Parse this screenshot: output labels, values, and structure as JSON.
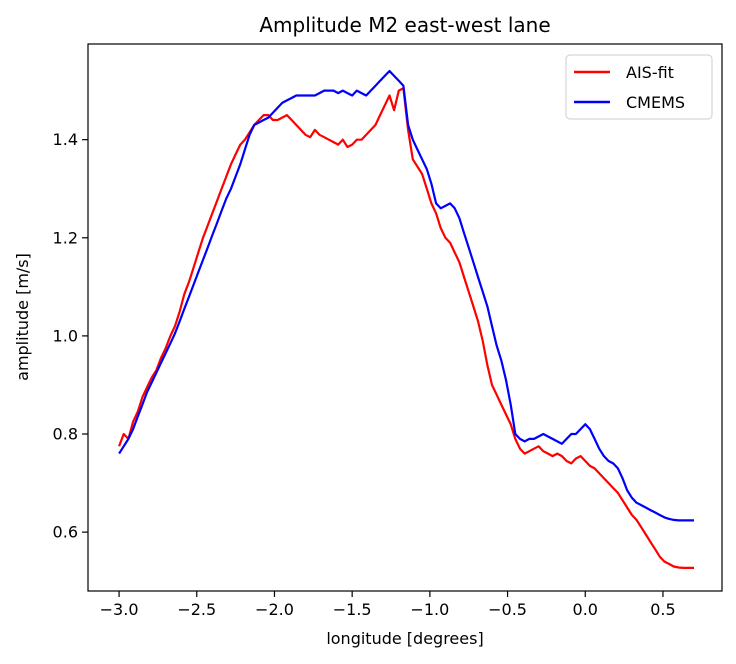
{
  "chart_data": {
    "type": "line",
    "title": "Amplitude M2 east-west lane",
    "xlabel": "longitude [degrees]",
    "ylabel": "amplitude [m/s]",
    "xlim": [
      -3.2,
      0.88
    ],
    "ylim": [
      0.48,
      1.595
    ],
    "xticks": [
      -3.0,
      -2.5,
      -2.0,
      -1.5,
      -1.0,
      -0.5,
      0.0,
      0.5
    ],
    "xtick_labels": [
      "−3.0",
      "−2.5",
      "−2.0",
      "−1.5",
      "−1.0",
      "−0.5",
      "0.0",
      "0.5"
    ],
    "yticks": [
      0.6,
      0.8,
      1.0,
      1.2,
      1.4
    ],
    "ytick_labels": [
      "0.6",
      "0.8",
      "1.0",
      "1.2",
      "1.4"
    ],
    "grid": false,
    "legend_position": "top-right",
    "series": [
      {
        "name": "AIS-fit",
        "color": "#ff0000",
        "x": [
          -3.0,
          -2.97,
          -2.94,
          -2.91,
          -2.88,
          -2.85,
          -2.82,
          -2.79,
          -2.76,
          -2.73,
          -2.7,
          -2.67,
          -2.64,
          -2.61,
          -2.58,
          -2.55,
          -2.52,
          -2.49,
          -2.46,
          -2.43,
          -2.4,
          -2.37,
          -2.34,
          -2.31,
          -2.28,
          -2.25,
          -2.22,
          -2.19,
          -2.16,
          -2.13,
          -2.1,
          -2.07,
          -2.04,
          -2.01,
          -1.98,
          -1.95,
          -1.92,
          -1.89,
          -1.86,
          -1.83,
          -1.8,
          -1.77,
          -1.74,
          -1.71,
          -1.68,
          -1.65,
          -1.62,
          -1.59,
          -1.56,
          -1.53,
          -1.5,
          -1.47,
          -1.44,
          -1.41,
          -1.38,
          -1.35,
          -1.32,
          -1.29,
          -1.26,
          -1.23,
          -1.2,
          -1.17,
          -1.14,
          -1.11,
          -1.08,
          -1.05,
          -1.02,
          -0.99,
          -0.96,
          -0.93,
          -0.9,
          -0.87,
          -0.84,
          -0.81,
          -0.78,
          -0.75,
          -0.72,
          -0.69,
          -0.66,
          -0.63,
          -0.6,
          -0.57,
          -0.54,
          -0.51,
          -0.48,
          -0.45,
          -0.42,
          -0.39,
          -0.36,
          -0.33,
          -0.3,
          -0.27,
          -0.24,
          -0.21,
          -0.18,
          -0.15,
          -0.12,
          -0.09,
          -0.06,
          -0.03,
          0.0,
          0.03,
          0.06,
          0.09,
          0.12,
          0.15,
          0.18,
          0.21,
          0.24,
          0.27,
          0.3,
          0.33,
          0.36,
          0.39,
          0.42,
          0.45,
          0.48,
          0.51,
          0.54,
          0.57,
          0.6,
          0.63,
          0.66,
          0.7
        ],
        "y": [
          0.775,
          0.8,
          0.79,
          0.825,
          0.845,
          0.875,
          0.895,
          0.915,
          0.93,
          0.955,
          0.975,
          1.0,
          1.02,
          1.05,
          1.085,
          1.11,
          1.14,
          1.17,
          1.2,
          1.225,
          1.25,
          1.275,
          1.3,
          1.325,
          1.35,
          1.37,
          1.39,
          1.4,
          1.415,
          1.43,
          1.44,
          1.45,
          1.45,
          1.44,
          1.44,
          1.445,
          1.45,
          1.44,
          1.43,
          1.42,
          1.41,
          1.405,
          1.42,
          1.41,
          1.405,
          1.4,
          1.395,
          1.39,
          1.4,
          1.385,
          1.39,
          1.4,
          1.4,
          1.41,
          1.42,
          1.43,
          1.45,
          1.47,
          1.49,
          1.46,
          1.5,
          1.505,
          1.42,
          1.36,
          1.345,
          1.33,
          1.3,
          1.27,
          1.25,
          1.22,
          1.2,
          1.19,
          1.17,
          1.15,
          1.12,
          1.09,
          1.06,
          1.03,
          0.99,
          0.94,
          0.9,
          0.88,
          0.86,
          0.84,
          0.82,
          0.79,
          0.77,
          0.76,
          0.765,
          0.77,
          0.775,
          0.765,
          0.76,
          0.755,
          0.76,
          0.755,
          0.745,
          0.74,
          0.75,
          0.755,
          0.745,
          0.735,
          0.73,
          0.72,
          0.71,
          0.7,
          0.69,
          0.68,
          0.665,
          0.65,
          0.635,
          0.625,
          0.61,
          0.595,
          0.58,
          0.565,
          0.55,
          0.54,
          0.535,
          0.53,
          0.528,
          0.527,
          0.527,
          0.527
        ]
      },
      {
        "name": "CMEMS",
        "color": "#0000ff",
        "x": [
          -3.0,
          -2.97,
          -2.94,
          -2.91,
          -2.88,
          -2.85,
          -2.82,
          -2.79,
          -2.76,
          -2.73,
          -2.7,
          -2.67,
          -2.64,
          -2.61,
          -2.58,
          -2.55,
          -2.52,
          -2.49,
          -2.46,
          -2.43,
          -2.4,
          -2.37,
          -2.34,
          -2.31,
          -2.28,
          -2.25,
          -2.22,
          -2.19,
          -2.16,
          -2.13,
          -2.1,
          -2.07,
          -2.04,
          -2.01,
          -1.98,
          -1.95,
          -1.92,
          -1.89,
          -1.86,
          -1.83,
          -1.8,
          -1.77,
          -1.74,
          -1.71,
          -1.68,
          -1.65,
          -1.62,
          -1.59,
          -1.56,
          -1.53,
          -1.5,
          -1.47,
          -1.44,
          -1.41,
          -1.38,
          -1.35,
          -1.32,
          -1.29,
          -1.26,
          -1.23,
          -1.2,
          -1.17,
          -1.14,
          -1.11,
          -1.08,
          -1.05,
          -1.02,
          -0.99,
          -0.96,
          -0.93,
          -0.9,
          -0.87,
          -0.84,
          -0.81,
          -0.78,
          -0.75,
          -0.72,
          -0.69,
          -0.66,
          -0.63,
          -0.6,
          -0.57,
          -0.54,
          -0.51,
          -0.48,
          -0.45,
          -0.42,
          -0.39,
          -0.36,
          -0.33,
          -0.3,
          -0.27,
          -0.24,
          -0.21,
          -0.18,
          -0.15,
          -0.12,
          -0.09,
          -0.06,
          -0.03,
          0.0,
          0.03,
          0.06,
          0.09,
          0.12,
          0.15,
          0.18,
          0.21,
          0.24,
          0.27,
          0.3,
          0.33,
          0.36,
          0.39,
          0.42,
          0.45,
          0.48,
          0.51,
          0.54,
          0.57,
          0.6,
          0.63,
          0.66,
          0.7
        ],
        "y": [
          0.76,
          0.775,
          0.79,
          0.81,
          0.835,
          0.86,
          0.885,
          0.905,
          0.925,
          0.945,
          0.965,
          0.985,
          1.005,
          1.03,
          1.055,
          1.08,
          1.105,
          1.13,
          1.155,
          1.18,
          1.205,
          1.23,
          1.255,
          1.28,
          1.3,
          1.325,
          1.35,
          1.38,
          1.41,
          1.43,
          1.435,
          1.44,
          1.445,
          1.455,
          1.465,
          1.475,
          1.48,
          1.485,
          1.49,
          1.49,
          1.49,
          1.49,
          1.49,
          1.495,
          1.5,
          1.5,
          1.5,
          1.495,
          1.5,
          1.495,
          1.49,
          1.5,
          1.495,
          1.49,
          1.5,
          1.51,
          1.52,
          1.53,
          1.54,
          1.53,
          1.52,
          1.51,
          1.43,
          1.4,
          1.38,
          1.36,
          1.34,
          1.31,
          1.27,
          1.26,
          1.265,
          1.27,
          1.26,
          1.24,
          1.21,
          1.18,
          1.15,
          1.12,
          1.09,
          1.06,
          1.02,
          0.98,
          0.95,
          0.91,
          0.86,
          0.8,
          0.79,
          0.785,
          0.79,
          0.79,
          0.795,
          0.8,
          0.795,
          0.79,
          0.785,
          0.78,
          0.79,
          0.8,
          0.8,
          0.81,
          0.82,
          0.81,
          0.79,
          0.77,
          0.755,
          0.745,
          0.74,
          0.73,
          0.71,
          0.685,
          0.67,
          0.66,
          0.655,
          0.65,
          0.645,
          0.64,
          0.635,
          0.63,
          0.627,
          0.625,
          0.624,
          0.624,
          0.624,
          0.624
        ]
      }
    ]
  }
}
